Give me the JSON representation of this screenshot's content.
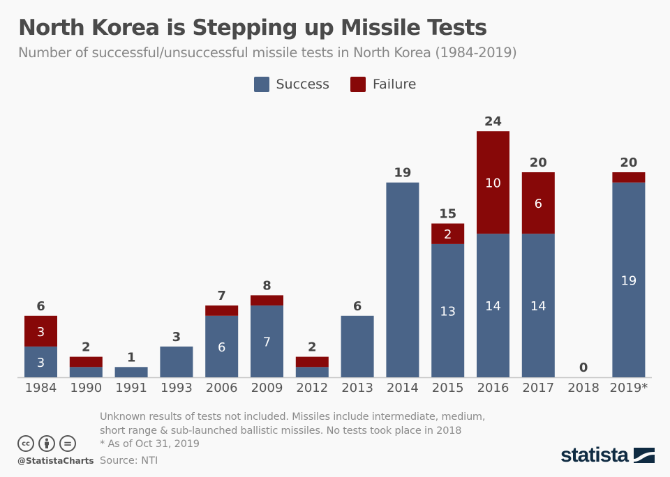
{
  "header": {
    "title": "North Korea is Stepping up Missile Tests",
    "subtitle": "Number of successful/unsuccessful missile tests in North Korea (1984-2019)"
  },
  "colors": {
    "success": "#4a6488",
    "failure": "#870808",
    "axis": "#c8c8c8",
    "label": "#444444",
    "tick": "#555555"
  },
  "chart_data": {
    "type": "bar",
    "stacked": true,
    "title": "North Korea is Stepping up Missile Tests",
    "subtitle": "Number of successful/unsuccessful missile tests in North Korea (1984-2019)",
    "xlabel": "",
    "ylabel": "",
    "ylim": [
      0,
      24
    ],
    "grid": false,
    "legend_position": "top-center",
    "categories": [
      "1984",
      "1990",
      "1991",
      "1993",
      "2006",
      "2009",
      "2012",
      "2013",
      "2014",
      "2015",
      "2016",
      "2017",
      "2018",
      "2019*"
    ],
    "series": [
      {
        "name": "Success",
        "values": [
          3,
          1,
          1,
          3,
          6,
          7,
          1,
          6,
          19,
          13,
          14,
          14,
          0,
          19
        ]
      },
      {
        "name": "Failure",
        "values": [
          3,
          1,
          0,
          0,
          1,
          1,
          1,
          0,
          0,
          2,
          10,
          6,
          0,
          1
        ]
      }
    ],
    "totals": [
      6,
      2,
      1,
      3,
      7,
      8,
      2,
      6,
      19,
      15,
      24,
      20,
      0,
      20
    ],
    "inner_labels": {
      "success": [
        "3",
        "",
        "",
        "",
        "6",
        "7",
        "",
        "",
        "",
        "13",
        "14",
        "14",
        "",
        "19"
      ],
      "failure": [
        "3",
        "",
        "",
        "",
        "",
        "",
        "",
        "",
        "",
        "2",
        "10",
        "6",
        "",
        ""
      ]
    }
  },
  "legend": {
    "items": [
      {
        "label": "Success"
      },
      {
        "label": "Failure"
      }
    ]
  },
  "footer": {
    "note_lines": [
      "Unknown results of tests not included. Missiles include intermediate, medium,",
      "short range & sub-launched ballistic missiles. No tests took place in 2018",
      "* As of Oct 31, 2019"
    ],
    "source": "Source: NTI",
    "handle": "@StatistaCharts",
    "cc_icons": [
      "cc-icon",
      "by-icon",
      "nd-icon"
    ],
    "cc_glyphs": [
      "cc",
      "",
      "="
    ],
    "brand": "statista"
  }
}
